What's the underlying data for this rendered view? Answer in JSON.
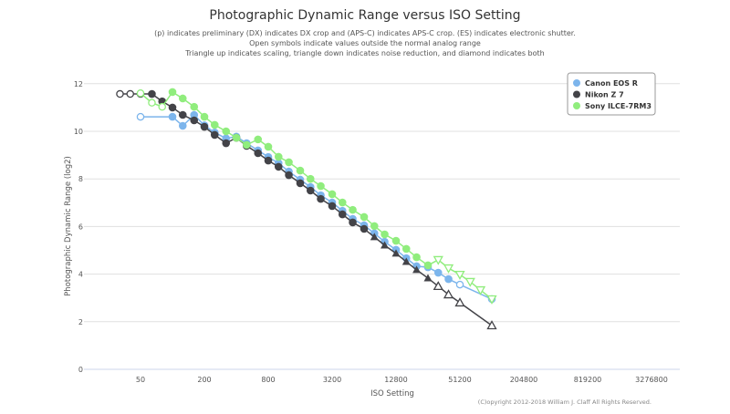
{
  "chart_data": {
    "type": "line",
    "title": "Photographic Dynamic Range versus ISO Setting",
    "subtitle": [
      "(p) indicates preliminary (DX) indicates DX crop and (APS-C) indicates APS-C crop. (ES) indicates electronic shutter.",
      "Open symbols indicate values outside the normal analog range",
      "Triangle up indicates scaling, triangle down indicates noise reduction, and diamond indicates both"
    ],
    "xlabel": "ISO Setting",
    "ylabel": "Photographic Dynamic Range (log2)",
    "x_scale": "log2",
    "x_ticks": [
      50,
      200,
      800,
      3200,
      12800,
      51200,
      204800,
      819200,
      3276800
    ],
    "y_ticks": [
      0,
      2,
      4,
      6,
      8,
      10,
      12
    ],
    "ylim": [
      0,
      12.5
    ],
    "grid": "horizontal",
    "legend": "top-right",
    "credits": "(C)opyright 2012-2018 William J. Claff All Rights Reserved.",
    "marker_key": {
      "c": "filled circle",
      "o": "open circle",
      "T": "filled triangle up",
      "t": "open triangle up",
      "v": "open triangle down"
    },
    "series": [
      {
        "name": "Canon EOS R",
        "color": "#7cb5ec",
        "points": [
          [
            50,
            10.61,
            "o"
          ],
          [
            100,
            10.61,
            "c"
          ],
          [
            125,
            10.23,
            "c"
          ],
          [
            160,
            10.69,
            "c"
          ],
          [
            200,
            10.25,
            "c"
          ],
          [
            250,
            9.95,
            "c"
          ],
          [
            320,
            9.7,
            "c"
          ],
          [
            400,
            9.78,
            "c"
          ],
          [
            500,
            9.5,
            "c"
          ],
          [
            640,
            9.2,
            "c"
          ],
          [
            800,
            8.92,
            "c"
          ],
          [
            1000,
            8.66,
            "c"
          ],
          [
            1250,
            8.31,
            "c"
          ],
          [
            1600,
            7.97,
            "c"
          ],
          [
            2000,
            7.66,
            "c"
          ],
          [
            2500,
            7.31,
            "c"
          ],
          [
            3200,
            7.01,
            "c"
          ],
          [
            4000,
            6.66,
            "c"
          ],
          [
            5000,
            6.32,
            "c"
          ],
          [
            6400,
            6.05,
            "c"
          ],
          [
            8000,
            5.71,
            "c"
          ],
          [
            10000,
            5.36,
            "c"
          ],
          [
            12800,
            5.02,
            "c"
          ],
          [
            16000,
            4.67,
            "c"
          ],
          [
            20000,
            4.33,
            "c"
          ],
          [
            25600,
            4.29,
            "c"
          ],
          [
            32000,
            4.06,
            "c"
          ],
          [
            40000,
            3.79,
            "c"
          ],
          [
            51200,
            3.56,
            "o"
          ],
          [
            102400,
            2.95,
            "o"
          ]
        ]
      },
      {
        "name": "Nikon Z 7",
        "color": "#434348",
        "points": [
          [
            32,
            11.57,
            "o"
          ],
          [
            40,
            11.57,
            "o"
          ],
          [
            50,
            11.57,
            "o"
          ],
          [
            64,
            11.57,
            "c"
          ],
          [
            80,
            11.26,
            "c"
          ],
          [
            100,
            11.0,
            "c"
          ],
          [
            125,
            10.69,
            "c"
          ],
          [
            160,
            10.46,
            "c"
          ],
          [
            200,
            10.19,
            "c"
          ],
          [
            250,
            9.85,
            "c"
          ],
          [
            320,
            9.5,
            "c"
          ],
          [
            400,
            9.73,
            "c"
          ],
          [
            500,
            9.39,
            "c"
          ],
          [
            640,
            9.08,
            "c"
          ],
          [
            800,
            8.77,
            "c"
          ],
          [
            1000,
            8.51,
            "c"
          ],
          [
            1250,
            8.16,
            "c"
          ],
          [
            1600,
            7.82,
            "c"
          ],
          [
            2000,
            7.51,
            "c"
          ],
          [
            2500,
            7.16,
            "c"
          ],
          [
            3200,
            6.86,
            "c"
          ],
          [
            4000,
            6.51,
            "c"
          ],
          [
            5000,
            6.17,
            "c"
          ],
          [
            6400,
            5.9,
            "c"
          ],
          [
            8000,
            5.56,
            "T"
          ],
          [
            10000,
            5.21,
            "T"
          ],
          [
            12800,
            4.87,
            "T"
          ],
          [
            16000,
            4.52,
            "T"
          ],
          [
            20000,
            4.18,
            "T"
          ],
          [
            25600,
            3.83,
            "T"
          ],
          [
            32000,
            3.49,
            "t"
          ],
          [
            40000,
            3.14,
            "t"
          ],
          [
            51200,
            2.8,
            "t"
          ],
          [
            102400,
            1.84,
            "t"
          ]
        ]
      },
      {
        "name": "Sony ILCE-7RM3",
        "color": "#90ed7d",
        "points": [
          [
            50,
            11.6,
            "o"
          ],
          [
            64,
            11.2,
            "o"
          ],
          [
            80,
            11.03,
            "o"
          ],
          [
            100,
            11.65,
            "c"
          ],
          [
            125,
            11.38,
            "c"
          ],
          [
            160,
            11.03,
            "c"
          ],
          [
            200,
            10.61,
            "c"
          ],
          [
            250,
            10.27,
            "c"
          ],
          [
            320,
            10.0,
            "c"
          ],
          [
            400,
            9.73,
            "c"
          ],
          [
            500,
            9.43,
            "c"
          ],
          [
            640,
            9.66,
            "c"
          ],
          [
            800,
            9.35,
            "c"
          ],
          [
            1000,
            8.93,
            "c"
          ],
          [
            1250,
            8.7,
            "c"
          ],
          [
            1600,
            8.35,
            "c"
          ],
          [
            2000,
            8.0,
            "c"
          ],
          [
            2500,
            7.7,
            "c"
          ],
          [
            3200,
            7.36,
            "c"
          ],
          [
            4000,
            7.01,
            "c"
          ],
          [
            5000,
            6.7,
            "c"
          ],
          [
            6400,
            6.4,
            "c"
          ],
          [
            8000,
            6.02,
            "c"
          ],
          [
            10000,
            5.67,
            "c"
          ],
          [
            12800,
            5.4,
            "c"
          ],
          [
            16000,
            5.06,
            "c"
          ],
          [
            20000,
            4.71,
            "c"
          ],
          [
            25600,
            4.37,
            "c"
          ],
          [
            32000,
            4.6,
            "v"
          ],
          [
            40000,
            4.25,
            "v"
          ],
          [
            51200,
            3.98,
            "v"
          ],
          [
            64000,
            3.68,
            "v"
          ],
          [
            80000,
            3.33,
            "v"
          ],
          [
            102400,
            2.95,
            "v"
          ]
        ]
      }
    ]
  }
}
